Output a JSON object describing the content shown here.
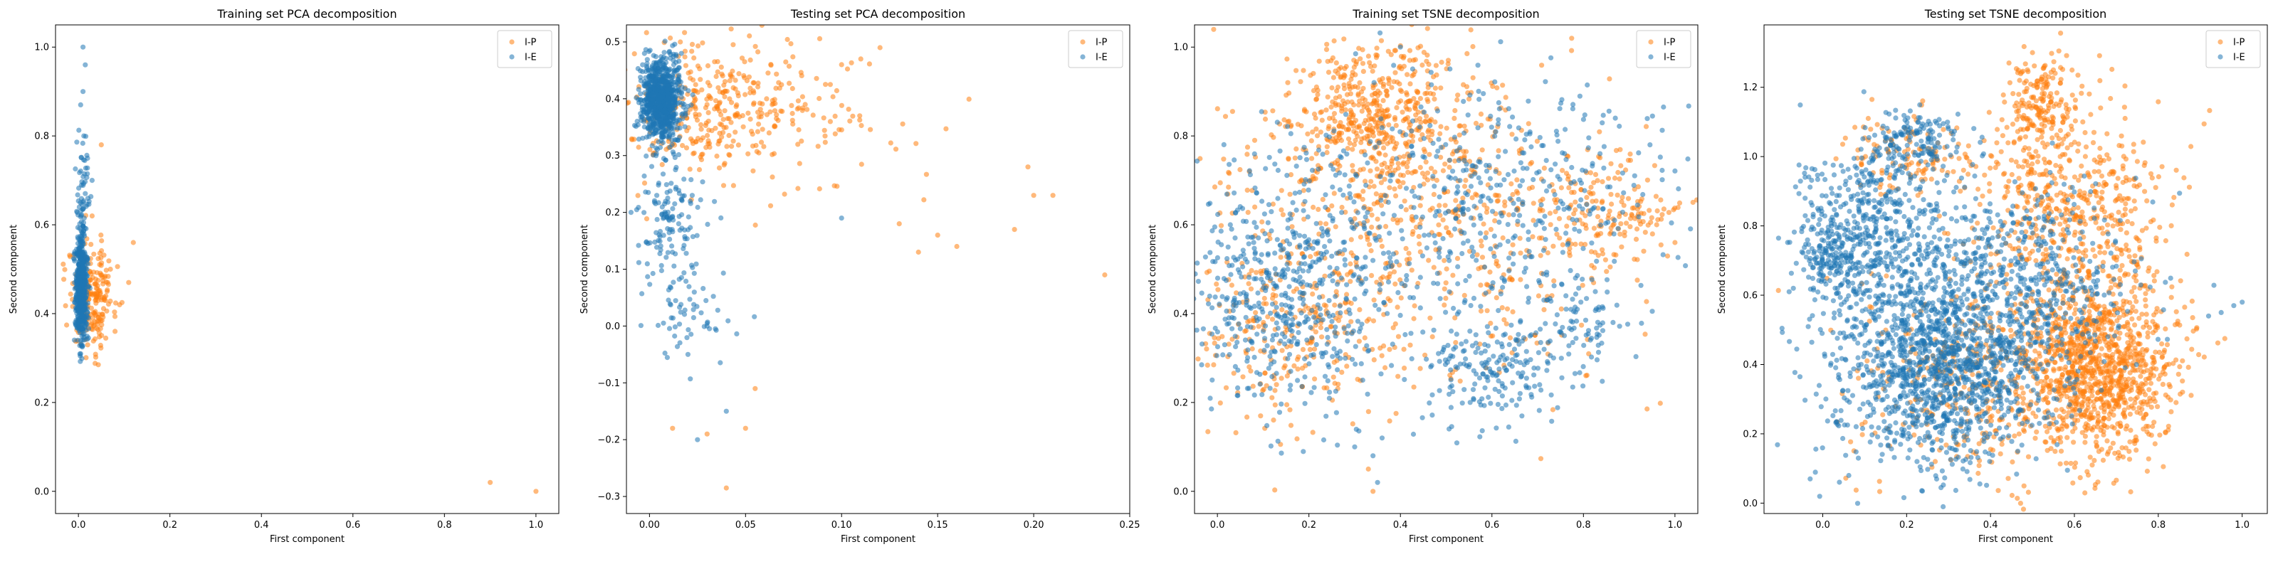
{
  "colors": {
    "I-P": "#ff7f0e",
    "I-E": "#1f77b4"
  },
  "chart_data": [
    {
      "type": "scatter",
      "title": "Training set PCA decomposition",
      "xlabel": "First component",
      "ylabel": "Second component",
      "xlim": [
        -0.05,
        1.05
      ],
      "ylim": [
        -0.05,
        1.05
      ],
      "xticks": [
        0.0,
        0.2,
        0.4,
        0.6,
        0.8,
        1.0
      ],
      "xtick_labels": [
        "0.0",
        "0.2",
        "0.4",
        "0.6",
        "0.8",
        "1.0"
      ],
      "yticks": [
        0.0,
        0.2,
        0.4,
        0.6,
        0.8,
        1.0
      ],
      "ytick_labels": [
        "0.0",
        "0.2",
        "0.4",
        "0.6",
        "0.8",
        "1.0"
      ],
      "legend": "top-right",
      "series": [
        {
          "name": "I-P",
          "color": "#ff7f0e",
          "points": [
            [
              0.9,
              0.02
            ],
            [
              1.0,
              0.0
            ],
            [
              0.12,
              0.56
            ],
            [
              0.11,
              0.47
            ],
            [
              0.09,
              0.42
            ],
            [
              0.08,
              0.36
            ],
            [
              0.05,
              0.78
            ],
            [
              0.07,
              0.5
            ],
            [
              0.03,
              0.62
            ],
            [
              0.06,
              0.44
            ]
          ],
          "clusters": [
            {
              "cx": 0.03,
              "cy": 0.44,
              "sx": 0.025,
              "sy": 0.06,
              "n": 220
            }
          ]
        },
        {
          "name": "I-E",
          "color": "#1f77b4",
          "points": [
            [
              0.01,
              1.0
            ],
            [
              0.015,
              0.96
            ],
            [
              0.01,
              0.9
            ],
            [
              0.005,
              0.87
            ],
            [
              0.012,
              0.8
            ],
            [
              0.02,
              0.75
            ],
            [
              0.03,
              0.7
            ]
          ],
          "clusters": [
            {
              "cx": 0.006,
              "cy": 0.45,
              "sx": 0.006,
              "sy": 0.06,
              "n": 500
            },
            {
              "cx": 0.01,
              "cy": 0.62,
              "sx": 0.008,
              "sy": 0.08,
              "n": 90
            }
          ]
        }
      ]
    },
    {
      "type": "scatter",
      "title": "Testing set PCA decomposition",
      "xlabel": "First component",
      "ylabel": "Second component",
      "xlim": [
        -0.012,
        0.25
      ],
      "ylim": [
        -0.33,
        0.53
      ],
      "xticks": [
        0.0,
        0.05,
        0.1,
        0.15,
        0.2,
        0.25
      ],
      "xtick_labels": [
        "0.00",
        "0.05",
        "0.10",
        "0.15",
        "0.20",
        "0.25"
      ],
      "yticks": [
        -0.3,
        -0.2,
        -0.1,
        0.0,
        0.1,
        0.2,
        0.3,
        0.4,
        0.5
      ],
      "ytick_labels": [
        "−0.3",
        "−0.2",
        "−0.1",
        "0.0",
        "0.1",
        "0.2",
        "0.3",
        "0.4",
        "0.5"
      ],
      "legend": "top-right",
      "series": [
        {
          "name": "I-P",
          "color": "#ff7f0e",
          "points": [
            [
              0.237,
              0.09
            ],
            [
              0.21,
              0.23
            ],
            [
              0.2,
              0.23
            ],
            [
              0.197,
              0.28
            ],
            [
              0.19,
              0.17
            ],
            [
              0.15,
              0.16
            ],
            [
              0.16,
              0.14
            ],
            [
              0.14,
              0.13
            ],
            [
              0.13,
              0.18
            ],
            [
              0.12,
              0.49
            ],
            [
              0.11,
              0.47
            ],
            [
              0.1,
              0.46
            ],
            [
              0.05,
              -0.18
            ],
            [
              0.04,
              -0.285
            ],
            [
              0.012,
              -0.18
            ],
            [
              0.03,
              -0.19
            ],
            [
              0.055,
              -0.11
            ]
          ],
          "clusters": [
            {
              "cx": 0.03,
              "cy": 0.38,
              "sx": 0.025,
              "sy": 0.06,
              "n": 320
            },
            {
              "cx": 0.08,
              "cy": 0.36,
              "sx": 0.03,
              "sy": 0.07,
              "n": 80
            }
          ]
        },
        {
          "name": "I-E",
          "color": "#1f77b4",
          "points": [
            [
              0.025,
              -0.2
            ],
            [
              0.02,
              -0.05
            ],
            [
              0.03,
              0.0
            ],
            [
              0.1,
              0.19
            ],
            [
              0.04,
              -0.15
            ]
          ],
          "clusters": [
            {
              "cx": 0.006,
              "cy": 0.4,
              "sx": 0.005,
              "sy": 0.035,
              "n": 900
            },
            {
              "cx": 0.01,
              "cy": 0.2,
              "sx": 0.009,
              "sy": 0.09,
              "n": 160
            },
            {
              "cx": 0.02,
              "cy": 0.02,
              "sx": 0.01,
              "sy": 0.07,
              "n": 40
            }
          ]
        }
      ]
    },
    {
      "type": "scatter",
      "title": "Training set TSNE decomposition",
      "xlabel": "First component",
      "ylabel": "Second component",
      "xlim": [
        -0.05,
        1.05
      ],
      "ylim": [
        -0.05,
        1.05
      ],
      "xticks": [
        0.0,
        0.2,
        0.4,
        0.6,
        0.8,
        1.0
      ],
      "xtick_labels": [
        "0.0",
        "0.2",
        "0.4",
        "0.6",
        "0.8",
        "1.0"
      ],
      "yticks": [
        0.0,
        0.2,
        0.4,
        0.6,
        0.8,
        1.0
      ],
      "ytick_labels": [
        "0.0",
        "0.2",
        "0.4",
        "0.6",
        "0.8",
        "1.0"
      ],
      "legend": "top-right",
      "series": [
        {
          "name": "I-P",
          "color": "#ff7f0e",
          "points": [
            [
              1.0,
              0.56
            ],
            [
              0.96,
              0.6
            ],
            [
              0.34,
              0.0
            ],
            [
              0.33,
              0.05
            ]
          ],
          "clusters": [
            {
              "cx": 0.35,
              "cy": 0.85,
              "sx": 0.1,
              "sy": 0.08,
              "n": 450
            },
            {
              "cx": 0.45,
              "cy": 0.6,
              "sx": 0.22,
              "sy": 0.17,
              "n": 650
            },
            {
              "cx": 0.85,
              "cy": 0.62,
              "sx": 0.09,
              "sy": 0.07,
              "n": 160
            },
            {
              "cx": 0.15,
              "cy": 0.35,
              "sx": 0.1,
              "sy": 0.1,
              "n": 200
            }
          ]
        },
        {
          "name": "I-E",
          "color": "#1f77b4",
          "points": [
            [
              0.4,
              1.0
            ],
            [
              0.35,
              0.02
            ],
            [
              0.34,
              0.08
            ],
            [
              0.36,
              0.12
            ],
            [
              0.3,
              0.1
            ]
          ],
          "clusters": [
            {
              "cx": 0.15,
              "cy": 0.45,
              "sx": 0.11,
              "sy": 0.13,
              "n": 550
            },
            {
              "cx": 0.6,
              "cy": 0.65,
              "sx": 0.2,
              "sy": 0.15,
              "n": 500
            },
            {
              "cx": 0.6,
              "cy": 0.28,
              "sx": 0.09,
              "sy": 0.07,
              "n": 200
            },
            {
              "cx": 0.8,
              "cy": 0.38,
              "sx": 0.04,
              "sy": 0.05,
              "n": 60
            }
          ]
        }
      ]
    },
    {
      "type": "scatter",
      "title": "Testing set TSNE decomposition",
      "xlabel": "First component",
      "ylabel": "Second component",
      "xlim": [
        -0.14,
        1.06
      ],
      "ylim": [
        -0.03,
        1.38
      ],
      "xticks": [
        0.0,
        0.2,
        0.4,
        0.6,
        0.8,
        1.0
      ],
      "xtick_labels": [
        "0.0",
        "0.2",
        "0.4",
        "0.6",
        "0.8",
        "1.0"
      ],
      "yticks": [
        0.0,
        0.2,
        0.4,
        0.6,
        0.8,
        1.0,
        1.2
      ],
      "ytick_labels": [
        "0.0",
        "0.2",
        "0.4",
        "0.6",
        "0.8",
        "1.0",
        "1.2"
      ],
      "legend": "top-right",
      "series": [
        {
          "name": "I-P",
          "color": "#ff7f0e",
          "points": [
            [
              0.5,
              1.3
            ],
            [
              0.55,
              1.25
            ],
            [
              0.58,
              1.15
            ],
            [
              0.62,
              1.1
            ]
          ],
          "clusters": [
            {
              "cx": 0.66,
              "cy": 0.4,
              "sx": 0.09,
              "sy": 0.13,
              "n": 1100
            },
            {
              "cx": 0.6,
              "cy": 0.85,
              "sx": 0.12,
              "sy": 0.14,
              "n": 500
            },
            {
              "cx": 0.52,
              "cy": 1.15,
              "sx": 0.05,
              "sy": 0.08,
              "n": 200
            },
            {
              "cx": 0.38,
              "cy": 0.35,
              "sx": 0.15,
              "sy": 0.15,
              "n": 400
            },
            {
              "cx": 0.2,
              "cy": 1.0,
              "sx": 0.08,
              "sy": 0.06,
              "n": 120
            }
          ]
        },
        {
          "name": "I-E",
          "color": "#1f77b4",
          "points": [
            [
              -0.08,
              0.61
            ],
            [
              -0.07,
              0.62
            ],
            [
              1.0,
              0.58
            ],
            [
              0.98,
              0.57
            ],
            [
              0.95,
              0.55
            ],
            [
              0.92,
              0.54
            ]
          ],
          "clusters": [
            {
              "cx": 0.28,
              "cy": 0.4,
              "sx": 0.13,
              "sy": 0.15,
              "n": 1400
            },
            {
              "cx": 0.12,
              "cy": 0.8,
              "sx": 0.09,
              "sy": 0.12,
              "n": 450
            },
            {
              "cx": 0.22,
              "cy": 1.05,
              "sx": 0.06,
              "sy": 0.05,
              "n": 150
            },
            {
              "cx": 0.48,
              "cy": 0.65,
              "sx": 0.14,
              "sy": 0.13,
              "n": 500
            },
            {
              "cx": 0.02,
              "cy": 0.7,
              "sx": 0.04,
              "sy": 0.06,
              "n": 150
            }
          ]
        }
      ]
    }
  ]
}
